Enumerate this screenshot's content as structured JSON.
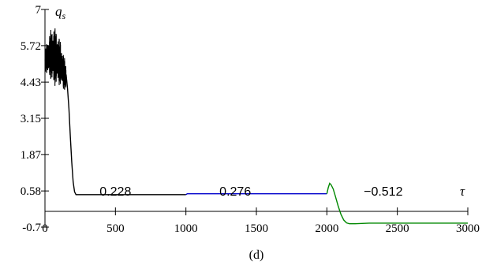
{
  "chart_data": {
    "type": "line",
    "title": "",
    "caption": "(d)",
    "xlabel": "τ",
    "ylabel": "q",
    "ylabel_sub": "s",
    "xlim": [
      0,
      3000
    ],
    "ylim": [
      -0.7,
      7
    ],
    "x_ticks": [
      "0",
      "500",
      "1000",
      "1500",
      "2000",
      "2500",
      "3000"
    ],
    "y_ticks": [
      "7",
      "5.72",
      "4.43",
      "3.15",
      "1.87",
      "0.58",
      "-0.7"
    ],
    "annotations": [
      {
        "text": "0.228",
        "x": 500
      },
      {
        "text": "0.276",
        "x": 1350
      },
      {
        "text": "−0.512",
        "x": 2400
      }
    ],
    "series": [
      {
        "color": "#000000",
        "segment": "oscillation",
        "x_range": [
          0,
          150
        ],
        "center_points": [
          [
            0,
            5.2
          ],
          [
            40,
            5.4
          ],
          [
            80,
            5.3
          ],
          [
            110,
            5.1
          ],
          [
            130,
            4.8
          ],
          [
            150,
            4.6
          ]
        ],
        "amplitude_points": [
          [
            0,
            0.4
          ],
          [
            60,
            1.1
          ],
          [
            110,
            0.8
          ],
          [
            150,
            0.5
          ]
        ]
      },
      {
        "color": "#000000",
        "segment": "decay",
        "points": [
          [
            150,
            4.7
          ],
          [
            160,
            4.2
          ],
          [
            170,
            3.5
          ],
          [
            180,
            2.5
          ],
          [
            190,
            1.6
          ],
          [
            200,
            0.9
          ],
          [
            210,
            0.55
          ],
          [
            220,
            0.45
          ],
          [
            1000,
            0.45
          ]
        ]
      },
      {
        "color": "#0000cc",
        "segment": "level",
        "points": [
          [
            1000,
            0.45
          ],
          [
            1010,
            0.48
          ],
          [
            2000,
            0.48
          ]
        ]
      },
      {
        "color": "#008800",
        "segment": "transient",
        "points": [
          [
            2000,
            0.48
          ],
          [
            2010,
            0.7
          ],
          [
            2020,
            0.85
          ],
          [
            2030,
            0.8
          ],
          [
            2045,
            0.65
          ],
          [
            2060,
            0.4
          ],
          [
            2080,
            0.05
          ],
          [
            2100,
            -0.25
          ],
          [
            2120,
            -0.45
          ],
          [
            2140,
            -0.55
          ],
          [
            2160,
            -0.58
          ],
          [
            2200,
            -0.58
          ],
          [
            2300,
            -0.56
          ],
          [
            3000,
            -0.56
          ]
        ]
      }
    ]
  }
}
